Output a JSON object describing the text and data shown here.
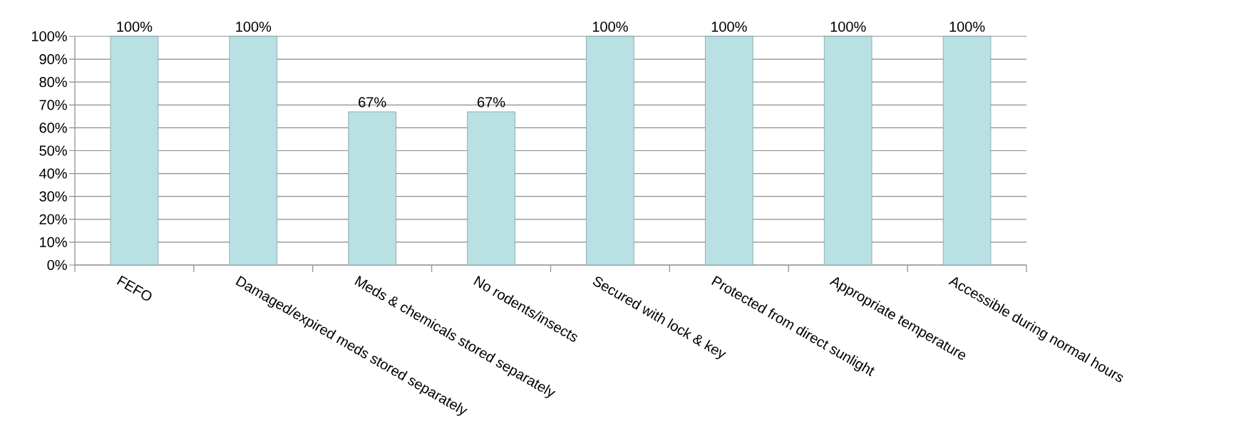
{
  "chart_data": {
    "type": "bar",
    "categories": [
      "FEFO",
      "Damaged/expired meds stored separately",
      "Meds & chemicals stored separately",
      "No rodents/insects",
      "Secured with lock & key",
      "Protected from direct sunlight",
      "Appropriate temperature",
      "Accessible during normal hours"
    ],
    "values": [
      100,
      100,
      67,
      67,
      100,
      100,
      100,
      100
    ],
    "value_labels": [
      "100%",
      "100%",
      "67%",
      "67%",
      "100%",
      "100%",
      "100%",
      "100%"
    ],
    "color": "#b9e0e3",
    "ylim": [
      0,
      100
    ],
    "yticks": [
      {
        "value": 0,
        "label": "0%"
      },
      {
        "value": 10,
        "label": "10%"
      },
      {
        "value": 20,
        "label": "20%"
      },
      {
        "value": 30,
        "label": "30%"
      },
      {
        "value": 40,
        "label": "40%"
      },
      {
        "value": 50,
        "label": "50%"
      },
      {
        "value": 60,
        "label": "60%"
      },
      {
        "value": 70,
        "label": "70%"
      },
      {
        "value": 80,
        "label": "80%"
      },
      {
        "value": 90,
        "label": "90%"
      },
      {
        "value": 100,
        "label": "100%"
      }
    ],
    "grid": "y"
  }
}
